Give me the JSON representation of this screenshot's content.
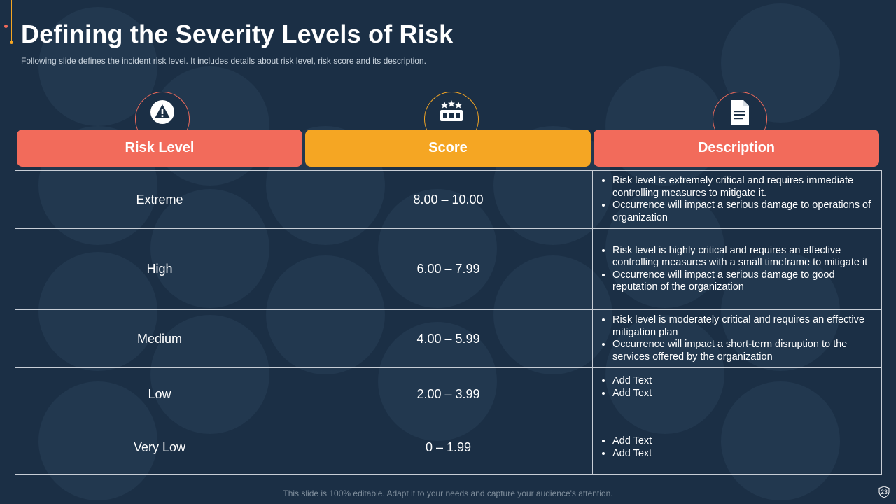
{
  "slide": {
    "title": "Defining the Severity Levels of Risk",
    "subtitle": "Following slide defines the incident risk level. It includes details about risk level, risk score and its description.",
    "footer": "This slide is 100% editable. Adapt it to your needs and capture your audience's attention.",
    "page_number": "23"
  },
  "headers": {
    "risk_level": {
      "label": "Risk Level",
      "icon": "warning-icon"
    },
    "score": {
      "label": "Score",
      "icon": "rating-meter-icon"
    },
    "description": {
      "label": "Description",
      "icon": "document-icon"
    }
  },
  "rows": [
    {
      "level": "Extreme",
      "score": "8.00 – 10.00",
      "bullets": [
        "Risk level is extremely critical and requires immediate controlling measures to mitigate it.",
        "Occurrence will impact a serious damage to operations of organization"
      ]
    },
    {
      "level": "High",
      "score": "6.00 – 7.99",
      "bullets": [
        "Risk level is highly critical and requires  an effective controlling measures with a small timeframe to mitigate it",
        "Occurrence will impact a serious damage to good reputation of the organization"
      ]
    },
    {
      "level": "Medium",
      "score": "4.00 – 5.99",
      "bullets": [
        "Risk level is moderately critical and requires an effective mitigation plan",
        "Occurrence will impact a short-term disruption to the services offered by the organization"
      ]
    },
    {
      "level": "Low",
      "score": "2.00 – 3.99",
      "bullets": [
        "Add Text",
        "Add Text"
      ]
    },
    {
      "level": "Very Low",
      "score": "0 – 1.99",
      "bullets": [
        "Add Text",
        "Add Text"
      ]
    }
  ],
  "colors": {
    "background": "#1b2f45",
    "accent_red": "#f26b5b",
    "accent_orange": "#f5a623"
  }
}
